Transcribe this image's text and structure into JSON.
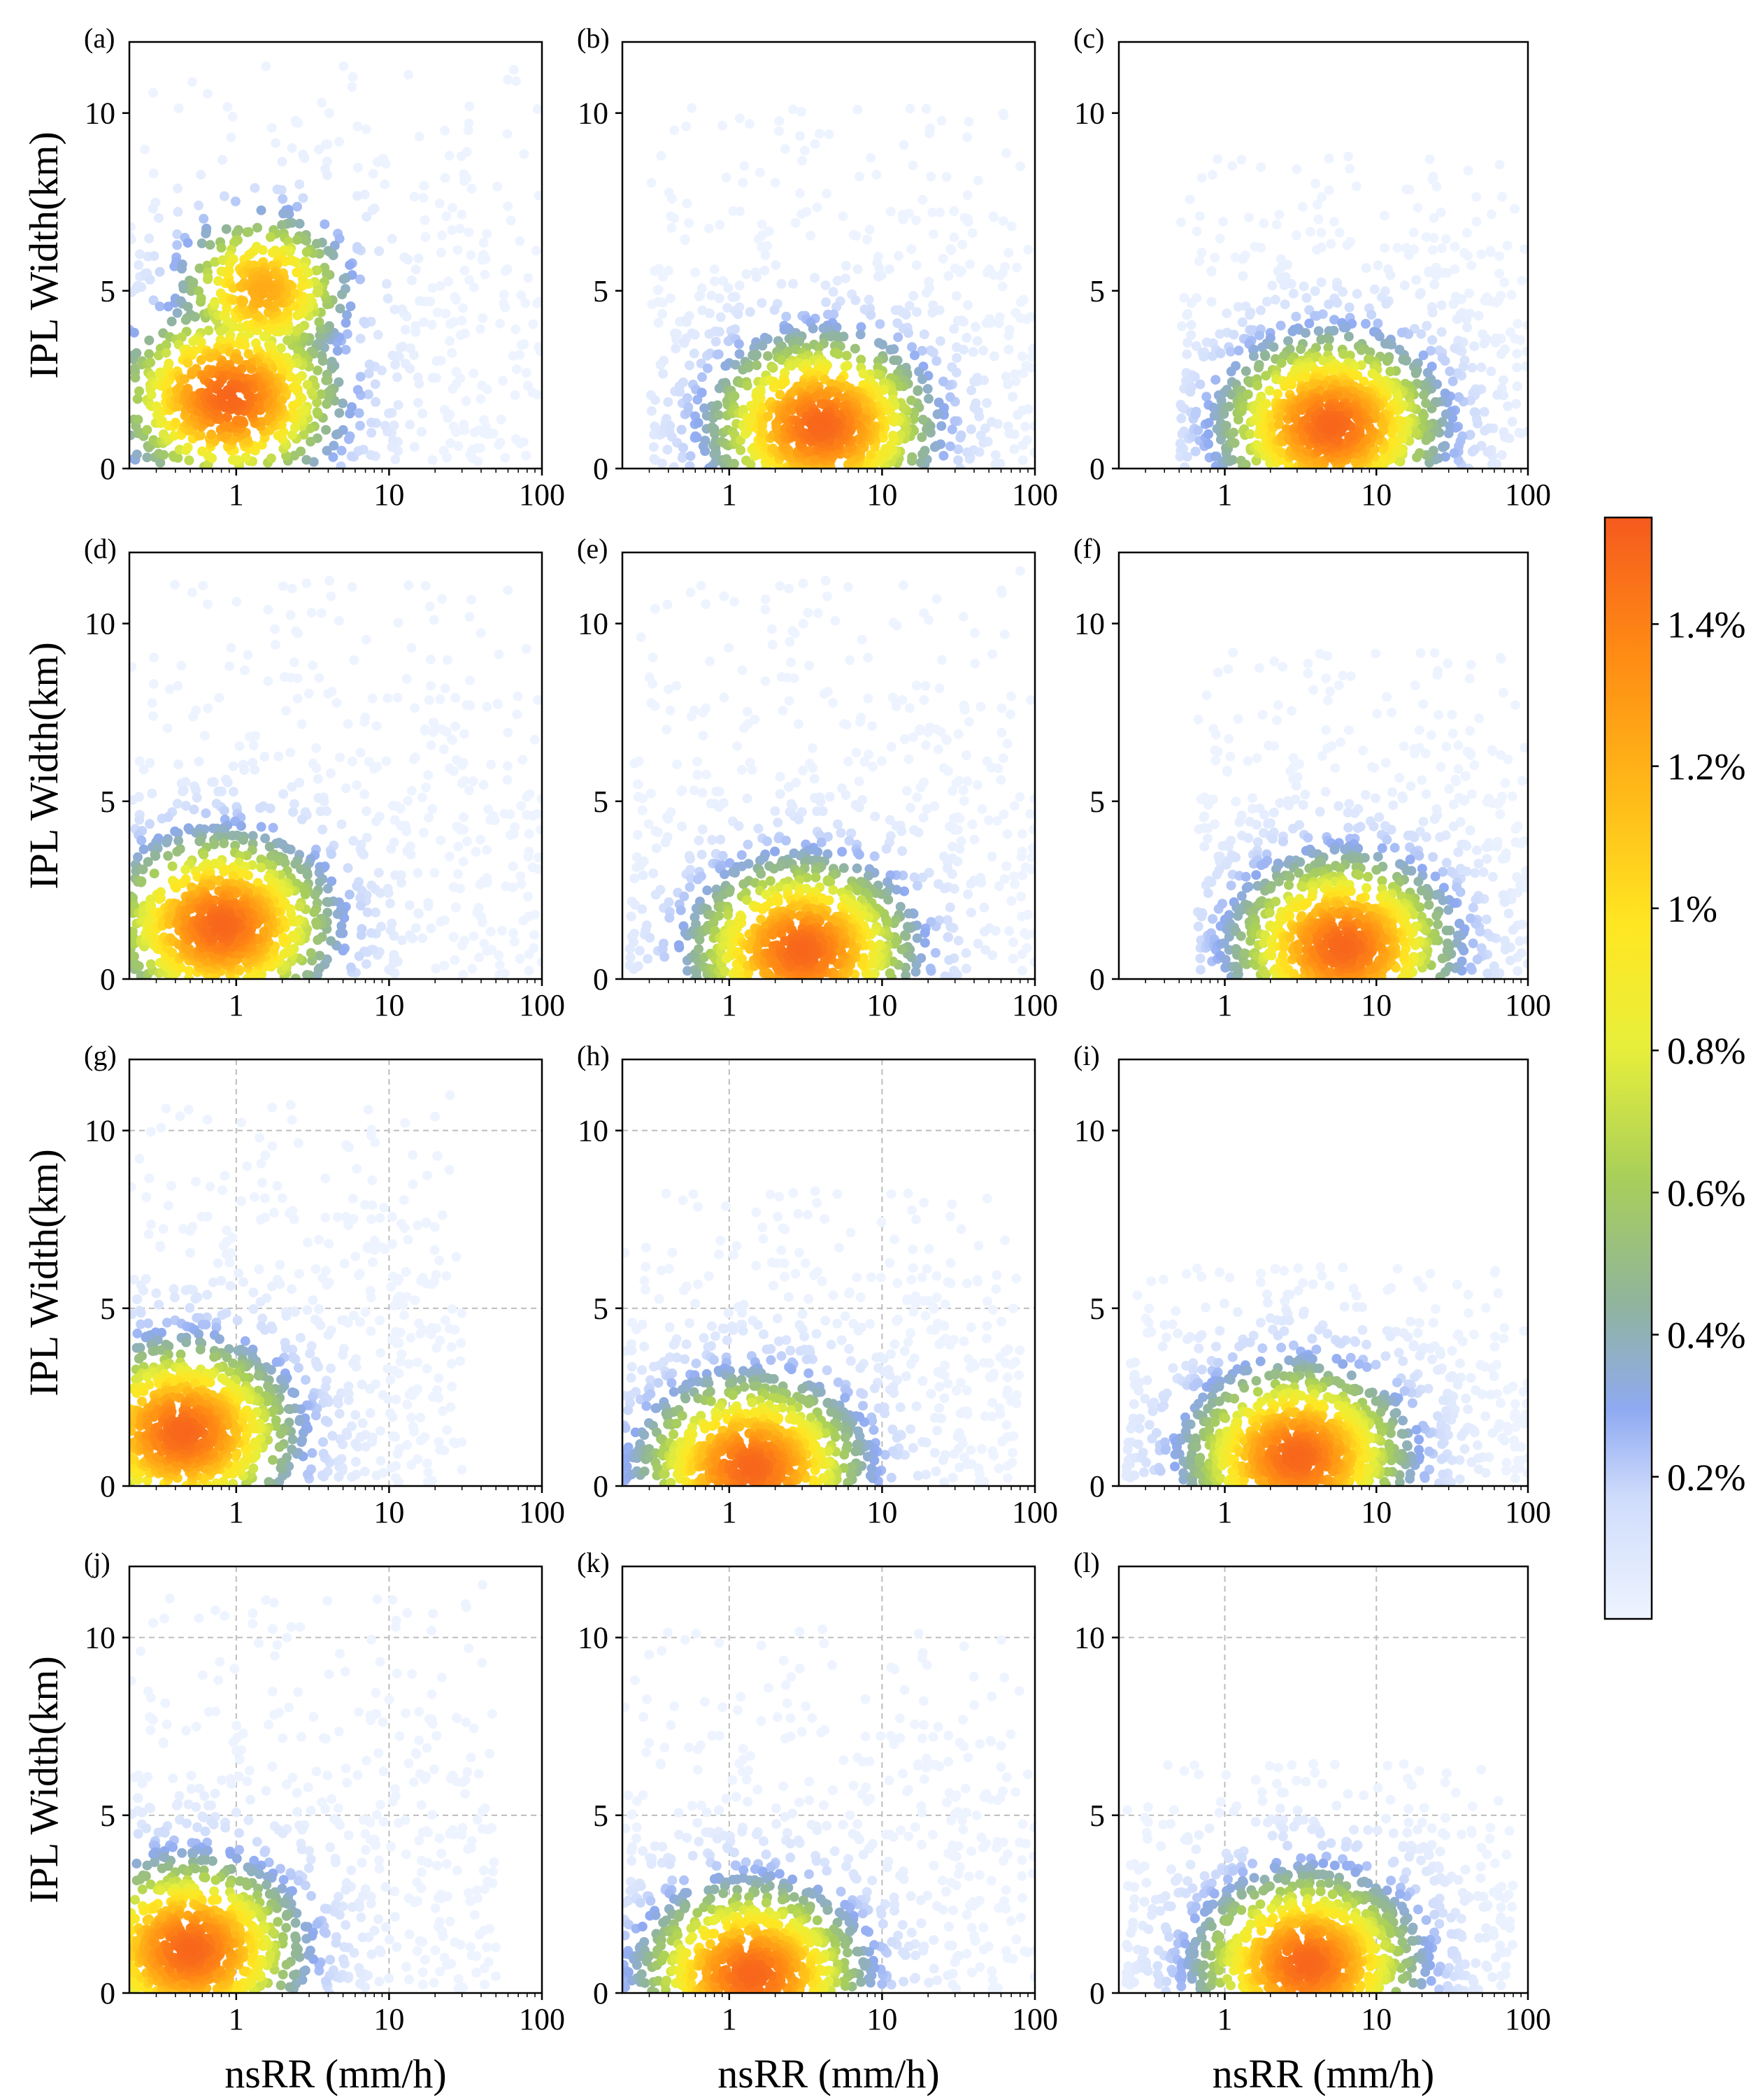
{
  "chart_data": {
    "type": "scatter",
    "layout": "4x3 grid of density-colored scatter panels",
    "shared_axes": {
      "xlabel": "nsRR (mm/h)",
      "ylabel": "IPL Width(km)",
      "xscale": "log",
      "xlim": [
        0.2,
        100
      ],
      "ylim": [
        0,
        12
      ],
      "xticks": [
        "1",
        "10",
        "100"
      ],
      "xtick_values": [
        1,
        10,
        100
      ],
      "yticks": [
        "0",
        "5",
        "10"
      ],
      "ytick_values": [
        0,
        5,
        10
      ]
    },
    "colorbar": {
      "label": "",
      "min": 0,
      "max": 1.55,
      "tick_values": [
        0.2,
        0.4,
        0.6,
        0.8,
        1.0,
        1.2,
        1.4
      ],
      "tick_labels": [
        "0.2%",
        "0.4%",
        "0.6%",
        "0.8%",
        "1%",
        "1.2%",
        "1.4%"
      ],
      "colormap": [
        "#eef4ff",
        "#cfdcfb",
        "#8faaf2",
        "#91b59a",
        "#a8cf5a",
        "#e8ef3a",
        "#ffe622",
        "#ffb217",
        "#ff8a14",
        "#f55a1e"
      ]
    },
    "panels": [
      {
        "label": "(a)",
        "grid": false,
        "max_width_km": 11.5,
        "core": {
          "nsRR": 0.9,
          "width_km": 2.0
        },
        "upper_core": {
          "nsRR": 1.5,
          "width_km": 5.0
        },
        "rr_range": [
          0.2,
          100
        ],
        "peak_density_pct": 1.45
      },
      {
        "label": "(b)",
        "grid": false,
        "max_width_km": 10.5,
        "core": {
          "nsRR": 4.0,
          "width_km": 1.2
        },
        "rr_range": [
          0.3,
          100
        ],
        "peak_density_pct": 1.45
      },
      {
        "label": "(c)",
        "grid": false,
        "max_width_km": 9.0,
        "core": {
          "nsRR": 5.0,
          "width_km": 1.2
        },
        "rr_range": [
          0.5,
          100
        ],
        "peak_density_pct": 1.45
      },
      {
        "label": "(d)",
        "grid": false,
        "max_width_km": 11.5,
        "core": {
          "nsRR": 0.8,
          "width_km": 1.5
        },
        "rr_range": [
          0.2,
          100
        ],
        "peak_density_pct": 1.45
      },
      {
        "label": "(e)",
        "grid": false,
        "max_width_km": 11.5,
        "core": {
          "nsRR": 3.0,
          "width_km": 0.8
        },
        "rr_range": [
          0.22,
          100
        ],
        "peak_density_pct": 1.45
      },
      {
        "label": "(f)",
        "grid": false,
        "max_width_km": 9.5,
        "core": {
          "nsRR": 6.0,
          "width_km": 0.9
        },
        "rr_range": [
          0.65,
          100
        ],
        "peak_density_pct": 1.45
      },
      {
        "label": "(g)",
        "grid": true,
        "max_width_km": 11.0,
        "core": {
          "nsRR": 0.45,
          "width_km": 1.5
        },
        "rr_range": [
          0.2,
          30
        ],
        "peak_density_pct": 1.45
      },
      {
        "label": "(h)",
        "grid": true,
        "max_width_km": 8.5,
        "core": {
          "nsRR": 1.4,
          "width_km": 0.5
        },
        "rr_range": [
          0.2,
          80
        ],
        "peak_density_pct": 1.45
      },
      {
        "label": "(i)",
        "grid": false,
        "max_width_km": 6.3,
        "core": {
          "nsRR": 3.0,
          "width_km": 0.8
        },
        "rr_range": [
          0.22,
          100
        ],
        "peak_density_pct": 1.45
      },
      {
        "label": "(j)",
        "grid": true,
        "max_width_km": 11.5,
        "core": {
          "nsRR": 0.5,
          "width_km": 1.2
        },
        "rr_range": [
          0.2,
          50
        ],
        "peak_density_pct": 1.45
      },
      {
        "label": "(k)",
        "grid": true,
        "max_width_km": 10.5,
        "core": {
          "nsRR": 1.4,
          "width_km": 0.5
        },
        "rr_range": [
          0.2,
          100
        ],
        "peak_density_pct": 1.45
      },
      {
        "label": "(l)",
        "grid": true,
        "max_width_km": 6.6,
        "core": {
          "nsRR": 3.5,
          "width_km": 0.8
        },
        "rr_range": [
          0.22,
          80
        ],
        "peak_density_pct": 1.45
      }
    ]
  }
}
